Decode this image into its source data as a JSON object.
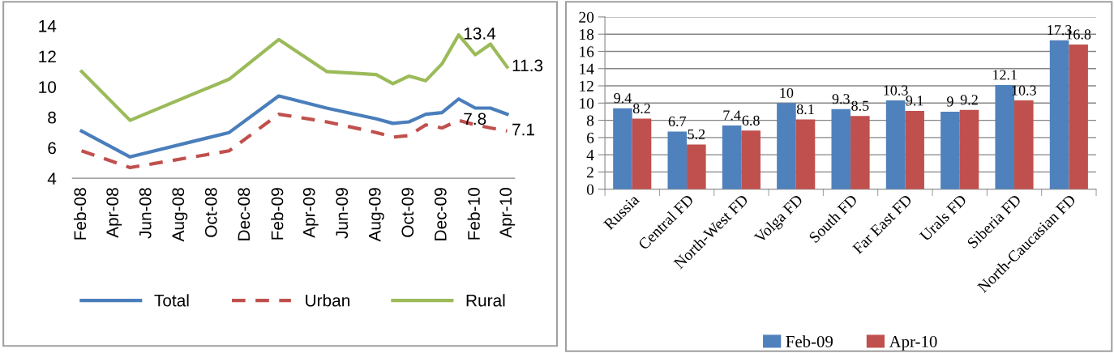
{
  "chart_data": [
    {
      "type": "line",
      "x": [
        "2008-02",
        "2008-05",
        "2008-11",
        "2009-02",
        "2009-05",
        "2009-08",
        "2009-09",
        "2009-10",
        "2009-11",
        "2009-12",
        "2010-01",
        "2010-02",
        "2010-03",
        "2010-04"
      ],
      "series": [
        {
          "name": "Total",
          "color": "#4a7ebb",
          "line_style": "solid",
          "values": [
            7.1,
            5.4,
            7.0,
            9.4,
            8.6,
            7.9,
            7.6,
            7.7,
            8.2,
            8.3,
            9.2,
            8.6,
            8.6,
            8.2
          ]
        },
        {
          "name": "Urban",
          "color": "#c0504d",
          "line_style": "dashed",
          "values": [
            5.8,
            4.7,
            5.8,
            8.2,
            7.7,
            7.0,
            6.7,
            6.8,
            7.5,
            7.3,
            7.8,
            7.5,
            7.3,
            7.1
          ]
        },
        {
          "name": "Rural",
          "color": "#9bbb59",
          "line_style": "solid",
          "values": [
            11.0,
            7.8,
            10.5,
            13.1,
            11.0,
            10.8,
            10.2,
            10.7,
            10.4,
            11.5,
            13.4,
            12.1,
            12.8,
            11.3
          ]
        }
      ],
      "xlim": [
        "2008-01-15",
        "2010-04-15"
      ],
      "xticks": [
        {
          "value": "2008-02",
          "label": "Feb-08"
        },
        {
          "value": "2008-04",
          "label": "Apr-08"
        },
        {
          "value": "2008-06",
          "label": "Jun-08"
        },
        {
          "value": "2008-08",
          "label": "Aug-08"
        },
        {
          "value": "2008-10",
          "label": "Oct-08"
        },
        {
          "value": "2008-12",
          "label": "Dec-08"
        },
        {
          "value": "2009-02",
          "label": "Feb-09"
        },
        {
          "value": "2009-04",
          "label": "Apr-09"
        },
        {
          "value": "2009-06",
          "label": "Jun-09"
        },
        {
          "value": "2009-08",
          "label": "Aug-09"
        },
        {
          "value": "2009-10",
          "label": "Oct-09"
        },
        {
          "value": "2009-12",
          "label": "Dec-09"
        },
        {
          "value": "2010-02",
          "label": "Feb-10"
        },
        {
          "value": "2010-04",
          "label": "Apr-10"
        }
      ],
      "ylim": [
        4,
        14
      ],
      "yticks": [
        4,
        6,
        8,
        10,
        12,
        14
      ],
      "annotations": [
        {
          "text": "13.4",
          "x": "2010-01",
          "y": 13.4
        },
        {
          "text": "7.8",
          "x": "2010-01",
          "y": 7.8
        },
        {
          "text": "11.3",
          "x": "2010-04",
          "y": 11.3
        },
        {
          "text": "7.1",
          "x": "2010-04",
          "y": 7.1
        }
      ],
      "grid": false,
      "legend": "bottom"
    },
    {
      "type": "bar",
      "categories": [
        "Russia",
        "Central FD",
        "North-West FD",
        "Volga FD",
        "South FD",
        "Far East FD",
        "Urals FD",
        "Siberia FD",
        "North-Caucasian FD"
      ],
      "series": [
        {
          "name": "Feb-09",
          "color": "#4f81bd",
          "values": [
            9.4,
            6.7,
            7.4,
            10,
            9.3,
            10.3,
            9,
            12.1,
            17.3
          ]
        },
        {
          "name": "Apr-10",
          "color": "#c0504d",
          "values": [
            8.2,
            5.2,
            6.8,
            8.1,
            8.5,
            9.1,
            9.2,
            10.3,
            16.8
          ]
        }
      ],
      "ylim": [
        0,
        20
      ],
      "yticks": [
        0,
        2,
        4,
        6,
        8,
        10,
        12,
        14,
        16,
        18,
        20
      ],
      "data_labels": true,
      "grid": "y",
      "legend": "bottom"
    }
  ]
}
